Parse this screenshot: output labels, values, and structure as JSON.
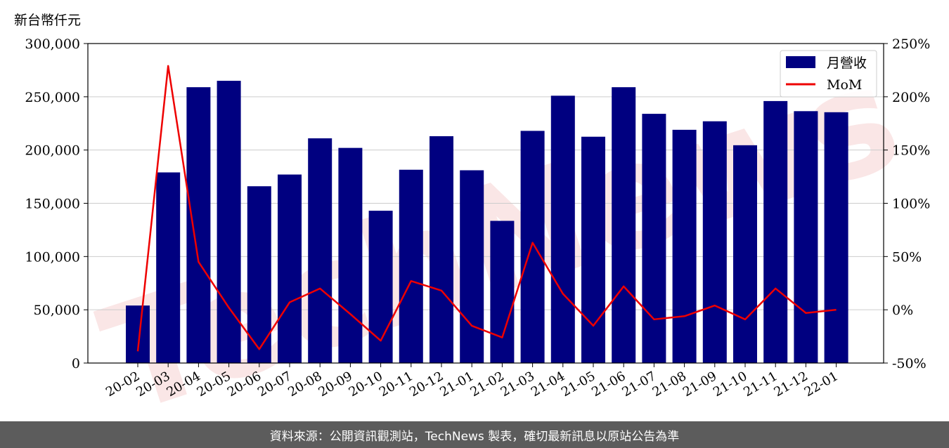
{
  "unit_label": "新台幣仟元",
  "footer_text": "資料來源：公開資訊觀測站，TechNews 製表，確切最新訊息以原站公告為準",
  "watermark_text": "TechNews",
  "colors": {
    "bar": "#000080",
    "line": "#ee0000",
    "grid": "#cccccc",
    "footer_bg": "#5c5c5c",
    "watermark": "#f0b8b8"
  },
  "chart_data": {
    "type": "bar+line",
    "categories": [
      "20-02",
      "20-03",
      "20-04",
      "20-05",
      "20-06",
      "20-07",
      "20-08",
      "20-09",
      "20-10",
      "20-11",
      "20-12",
      "21-01",
      "21-02",
      "21-03",
      "21-04",
      "21-05",
      "21-06",
      "21-07",
      "21-08",
      "21-09",
      "21-10",
      "21-11",
      "21-12",
      "22-01"
    ],
    "series": [
      {
        "name": "月營收",
        "type": "bar",
        "axis": "left",
        "values": [
          54000,
          179000,
          259000,
          265000,
          166000,
          177000,
          211000,
          202000,
          143000,
          181500,
          213000,
          181000,
          133500,
          218000,
          251000,
          212500,
          259000,
          234000,
          219000,
          227000,
          204500,
          246000,
          236500,
          235500
        ]
      },
      {
        "name": "MoM",
        "type": "line",
        "axis": "right",
        "values": [
          -39,
          229,
          45,
          2,
          -37,
          7,
          20,
          -4,
          -29,
          27,
          18,
          -15,
          -26,
          63,
          15,
          -15,
          22,
          -9,
          -6,
          4,
          -9,
          20,
          -3,
          0
        ]
      }
    ],
    "left_axis": {
      "ylim": [
        0,
        300000
      ],
      "ticks": [
        0,
        50000,
        100000,
        150000,
        200000,
        250000,
        300000
      ],
      "tick_labels": [
        "0",
        "50,000",
        "100,000",
        "150,000",
        "200,000",
        "250,000",
        "300,000"
      ]
    },
    "right_axis": {
      "ylim": [
        -50,
        250
      ],
      "ticks": [
        -50,
        0,
        50,
        100,
        150,
        200,
        250
      ],
      "tick_labels": [
        "-50%",
        "0%",
        "50%",
        "100%",
        "150%",
        "200%",
        "250%"
      ]
    },
    "grid": true,
    "legend_placement": "top-right"
  }
}
